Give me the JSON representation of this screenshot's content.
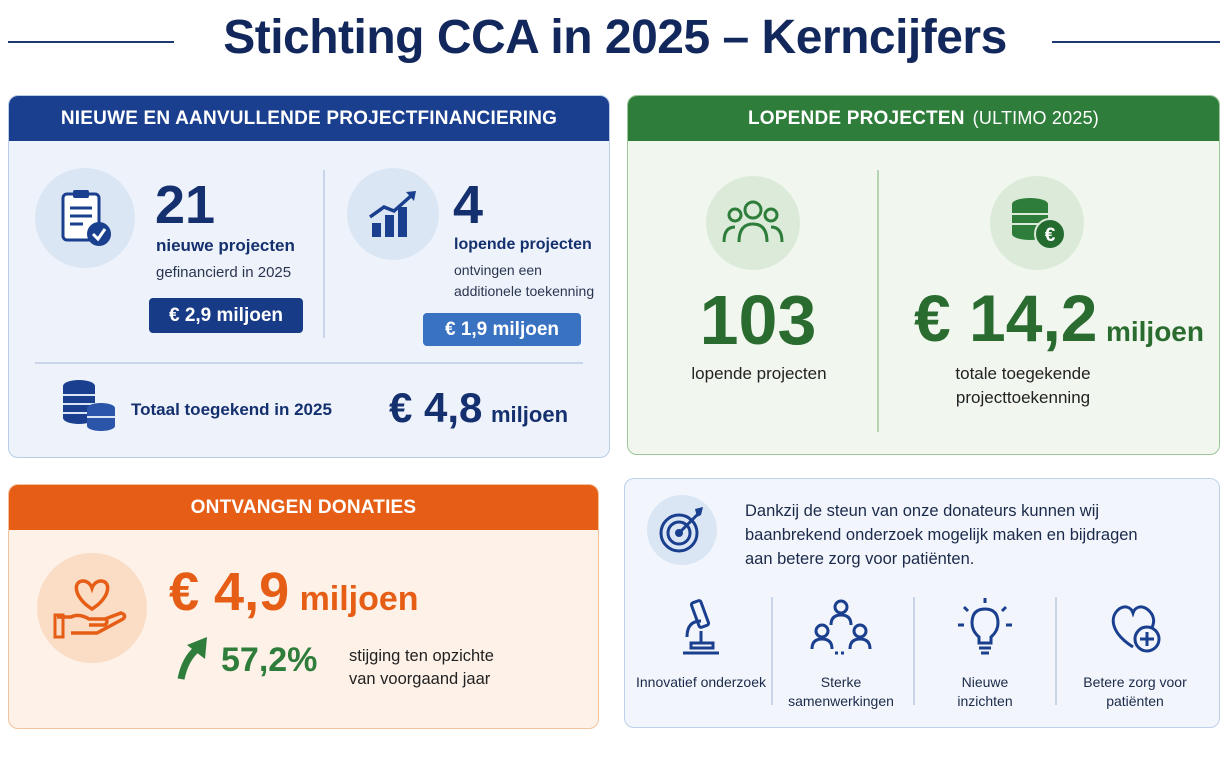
{
  "title": "Stichting CCA in 2025 – Kerncijfers",
  "financing": {
    "header": "NIEUWE EN AANVULLENDE PROJECTFINANCIERING",
    "new_projects": {
      "count": "21",
      "label": "nieuwe projecten",
      "sublabel": "gefinancierd in 2025",
      "amount": "€ 2,9 miljoen",
      "icon": "clipboard-check-icon"
    },
    "running_projects": {
      "count": "4",
      "label": "lopende projecten",
      "sublabel_line1": "ontvingen een",
      "sublabel_line2": "additionele toekenning",
      "amount": "€ 1,9 miljoen",
      "icon": "growth-chart-icon"
    },
    "total": {
      "label": "Totaal toegekend in 2025",
      "amount": "€ 4,8",
      "unit": "miljoen",
      "icon": "coins-icon"
    }
  },
  "running": {
    "header_main": "LOPENDE PROJECTEN",
    "header_sub": "(ULTIMO 2025)",
    "projects": {
      "count": "103",
      "label": "lopende projecten",
      "icon": "people-group-icon"
    },
    "awarded": {
      "amount": "€ 14,2",
      "unit": "miljoen",
      "label_line1": "totale toegekende",
      "label_line2": "projecttoekenning",
      "icon": "euro-coins-icon"
    }
  },
  "donations": {
    "header": "ONTVANGEN DONATIES",
    "amount": "€ 4,9",
    "unit": "miljoen",
    "growth": "57,2%",
    "growth_text_line1": "stijging ten opzichte",
    "growth_text_line2": "van voorgaand jaar",
    "icon": "heart-hand-icon"
  },
  "impact": {
    "text_line1": "Dankzij de steun van onze donateurs kunnen wij",
    "text_line2": "baanbrekend onderzoek mogelijk maken en bijdragen",
    "text_line3": "aan betere zorg voor patiënten.",
    "pillars": [
      {
        "line1": "Innovatief onderzoek",
        "line2": "",
        "icon": "microscope-icon"
      },
      {
        "line1": "Sterke",
        "line2": "samenwerkingen",
        "icon": "collaboration-icon"
      },
      {
        "line1": "Nieuwe",
        "line2": "inzichten",
        "icon": "lightbulb-icon"
      },
      {
        "line1": "Betere zorg voor",
        "line2": "patiënten",
        "icon": "heart-plus-icon"
      }
    ]
  },
  "colors": {
    "navy": "#14306e",
    "blue_header": "#1a3f8f",
    "green": "#2e7d3a",
    "orange": "#e65e16"
  }
}
